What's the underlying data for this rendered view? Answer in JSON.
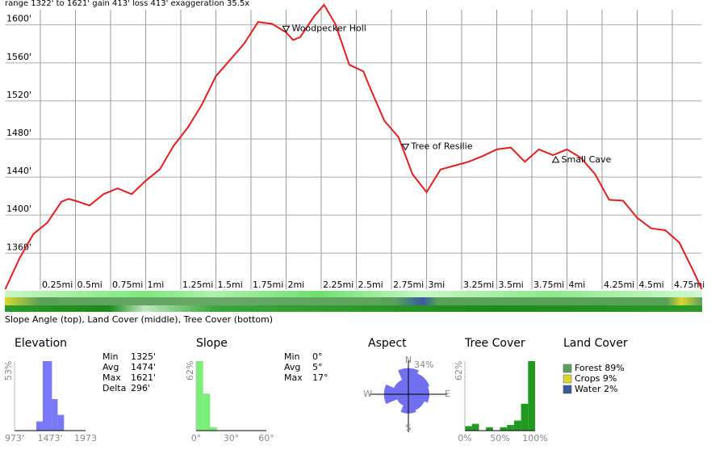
{
  "header": {
    "stats": "range 1322' to 1621'  gain 413'  loss 413'  exaggeration 35.5x"
  },
  "strips": {
    "caption": "Slope Angle (top), Land Cover (middle), Tree Cover (bottom)"
  },
  "chart_data": [
    {
      "type": "line",
      "color": "#e02020",
      "grid": true,
      "x": [
        0,
        0.1,
        0.2,
        0.3,
        0.4,
        0.45,
        0.5,
        0.6,
        0.7,
        0.8,
        0.9,
        1.0,
        1.1,
        1.2,
        1.3,
        1.4,
        1.5,
        1.6,
        1.7,
        1.8,
        1.9,
        2.0,
        2.05,
        2.1,
        2.2,
        2.27,
        2.35,
        2.45,
        2.55,
        2.6,
        2.7,
        2.8,
        2.9,
        3.0,
        3.1,
        3.2,
        3.3,
        3.4,
        3.5,
        3.6,
        3.7,
        3.8,
        3.9,
        4.0,
        4.1,
        4.2,
        4.3,
        4.4,
        4.5,
        4.6,
        4.7,
        4.8,
        4.9,
        4.96
      ],
      "values": [
        1322,
        1354,
        1380,
        1392,
        1414,
        1417,
        1415,
        1410,
        1422,
        1428,
        1422,
        1436,
        1448,
        1473,
        1492,
        1516,
        1546,
        1563,
        1580,
        1603,
        1601,
        1592,
        1584,
        1587,
        1609,
        1621,
        1601,
        1558,
        1551,
        1533,
        1499,
        1482,
        1443,
        1424,
        1448,
        1452,
        1456,
        1462,
        1469,
        1471,
        1456,
        1469,
        1463,
        1469,
        1460,
        1443,
        1416,
        1415,
        1397,
        1386,
        1384,
        1371,
        1341,
        1322
      ],
      "xlim": [
        0,
        4.96
      ],
      "ylim": [
        1322,
        1621
      ],
      "xticks": [
        {
          "value": 0.25,
          "label": "0.25mi"
        },
        {
          "value": 0.5,
          "label": "0.5mi"
        },
        {
          "value": 0.75,
          "label": "0.75mi"
        },
        {
          "value": 1,
          "label": "1mi"
        },
        {
          "value": 1.25,
          "label": "1.25mi"
        },
        {
          "value": 1.5,
          "label": "1.5mi"
        },
        {
          "value": 1.75,
          "label": "1.75mi"
        },
        {
          "value": 2,
          "label": "2mi"
        },
        {
          "value": 2.25,
          "label": "2.25mi"
        },
        {
          "value": 2.5,
          "label": "2.5mi"
        },
        {
          "value": 2.75,
          "label": "2.75mi"
        },
        {
          "value": 3,
          "label": "3mi"
        },
        {
          "value": 3.25,
          "label": "3.25mi"
        },
        {
          "value": 3.5,
          "label": "3.5mi"
        },
        {
          "value": 3.75,
          "label": "3.75mi"
        },
        {
          "value": 4,
          "label": "4mi"
        },
        {
          "value": 4.25,
          "label": "4.25mi"
        },
        {
          "value": 4.5,
          "label": "4.5mi"
        },
        {
          "value": 4.75,
          "label": "4.75mi"
        }
      ],
      "yticks": [
        {
          "value": 1360,
          "label": "1360'"
        },
        {
          "value": 1400,
          "label": "1400'"
        },
        {
          "value": 1440,
          "label": "1440'"
        },
        {
          "value": 1480,
          "label": "1480'"
        },
        {
          "value": 1520,
          "label": "1520'"
        },
        {
          "value": 1560,
          "label": "1560'"
        },
        {
          "value": 1600,
          "label": "1600'"
        }
      ],
      "annotations": [
        {
          "label": "Woodpecker Holl",
          "x": 2.0,
          "elevation": 1596,
          "marker": "down"
        },
        {
          "label": "Tree of Resilie",
          "x": 2.85,
          "elevation": 1472,
          "marker": "down"
        },
        {
          "label": "Small Cave",
          "x": 3.92,
          "elevation": 1458,
          "marker": "up"
        }
      ]
    },
    {
      "type": "histogram",
      "title": "Elevation",
      "color": "#7878f8",
      "bins": [
        1280,
        1370,
        1500,
        1580,
        1670
      ],
      "values": [
        7,
        53,
        24,
        12
      ],
      "xlim": [
        973,
        1973
      ],
      "ylim": [
        0,
        53
      ],
      "xticks": [
        {
          "value": 973,
          "label": "973'"
        },
        {
          "value": 1473,
          "label": "1473'"
        },
        1973
      ],
      "yticks": [
        {
          "value": 53,
          "label": "53%"
        }
      ],
      "stats": [
        [
          "Min",
          "1325'"
        ],
        [
          "Avg",
          "1474'"
        ],
        [
          "Max",
          "1621'"
        ],
        [
          "Delta",
          "296'"
        ]
      ]
    },
    {
      "type": "histogram",
      "title": "Slope",
      "color": "#7af07a",
      "bins": [
        0,
        6,
        12,
        18
      ],
      "values": [
        62,
        33,
        3
      ],
      "xlim": [
        0,
        60
      ],
      "ylim": [
        0,
        62
      ],
      "xticks": [
        {
          "value": 0,
          "label": "0°"
        },
        {
          "value": 30,
          "label": "30°"
        },
        {
          "value": 60,
          "label": "60°"
        }
      ],
      "yticks": [
        {
          "value": 62,
          "label": "62%"
        }
      ],
      "stats": [
        [
          "Min",
          "0°"
        ],
        [
          "Avg",
          "5°"
        ],
        [
          "Max",
          "17°"
        ]
      ]
    },
    {
      "type": "rose",
      "title": "Aspect",
      "color": "#7070f0",
      "categories": [
        "N",
        null,
        "E",
        null,
        "S",
        null,
        "W",
        null
      ],
      "values": [
        30,
        26,
        24,
        20,
        22,
        14,
        28,
        18
      ],
      "rlim": [
        0,
        34
      ],
      "rticks": [
        {
          "value": 34,
          "label": "34%"
        }
      ]
    },
    {
      "type": "histogram",
      "title": "Tree Cover",
      "color": "#1f9a1f",
      "bins": [
        0,
        10,
        20,
        30,
        40,
        50,
        60,
        70,
        80,
        90,
        100
      ],
      "values": [
        4,
        6,
        0,
        3,
        0,
        3,
        5,
        9,
        24,
        62
      ],
      "xlim": [
        0,
        100
      ],
      "ylim": [
        0,
        62
      ],
      "xticks": [
        {
          "value": 0,
          "label": "0%"
        },
        {
          "value": 50,
          "label": "50%"
        },
        {
          "value": 100,
          "label": "100%"
        }
      ],
      "yticks": [
        {
          "value": 62,
          "label": "62%"
        }
      ]
    }
  ],
  "land_cover": {
    "title": "Land Cover",
    "items": [
      {
        "label": "Forest 89%",
        "color": "#5aa05a"
      },
      {
        "label": "Crops 9%",
        "color": "#d8d830"
      },
      {
        "label": "Water 2%",
        "color": "#3a5aa0"
      }
    ]
  }
}
